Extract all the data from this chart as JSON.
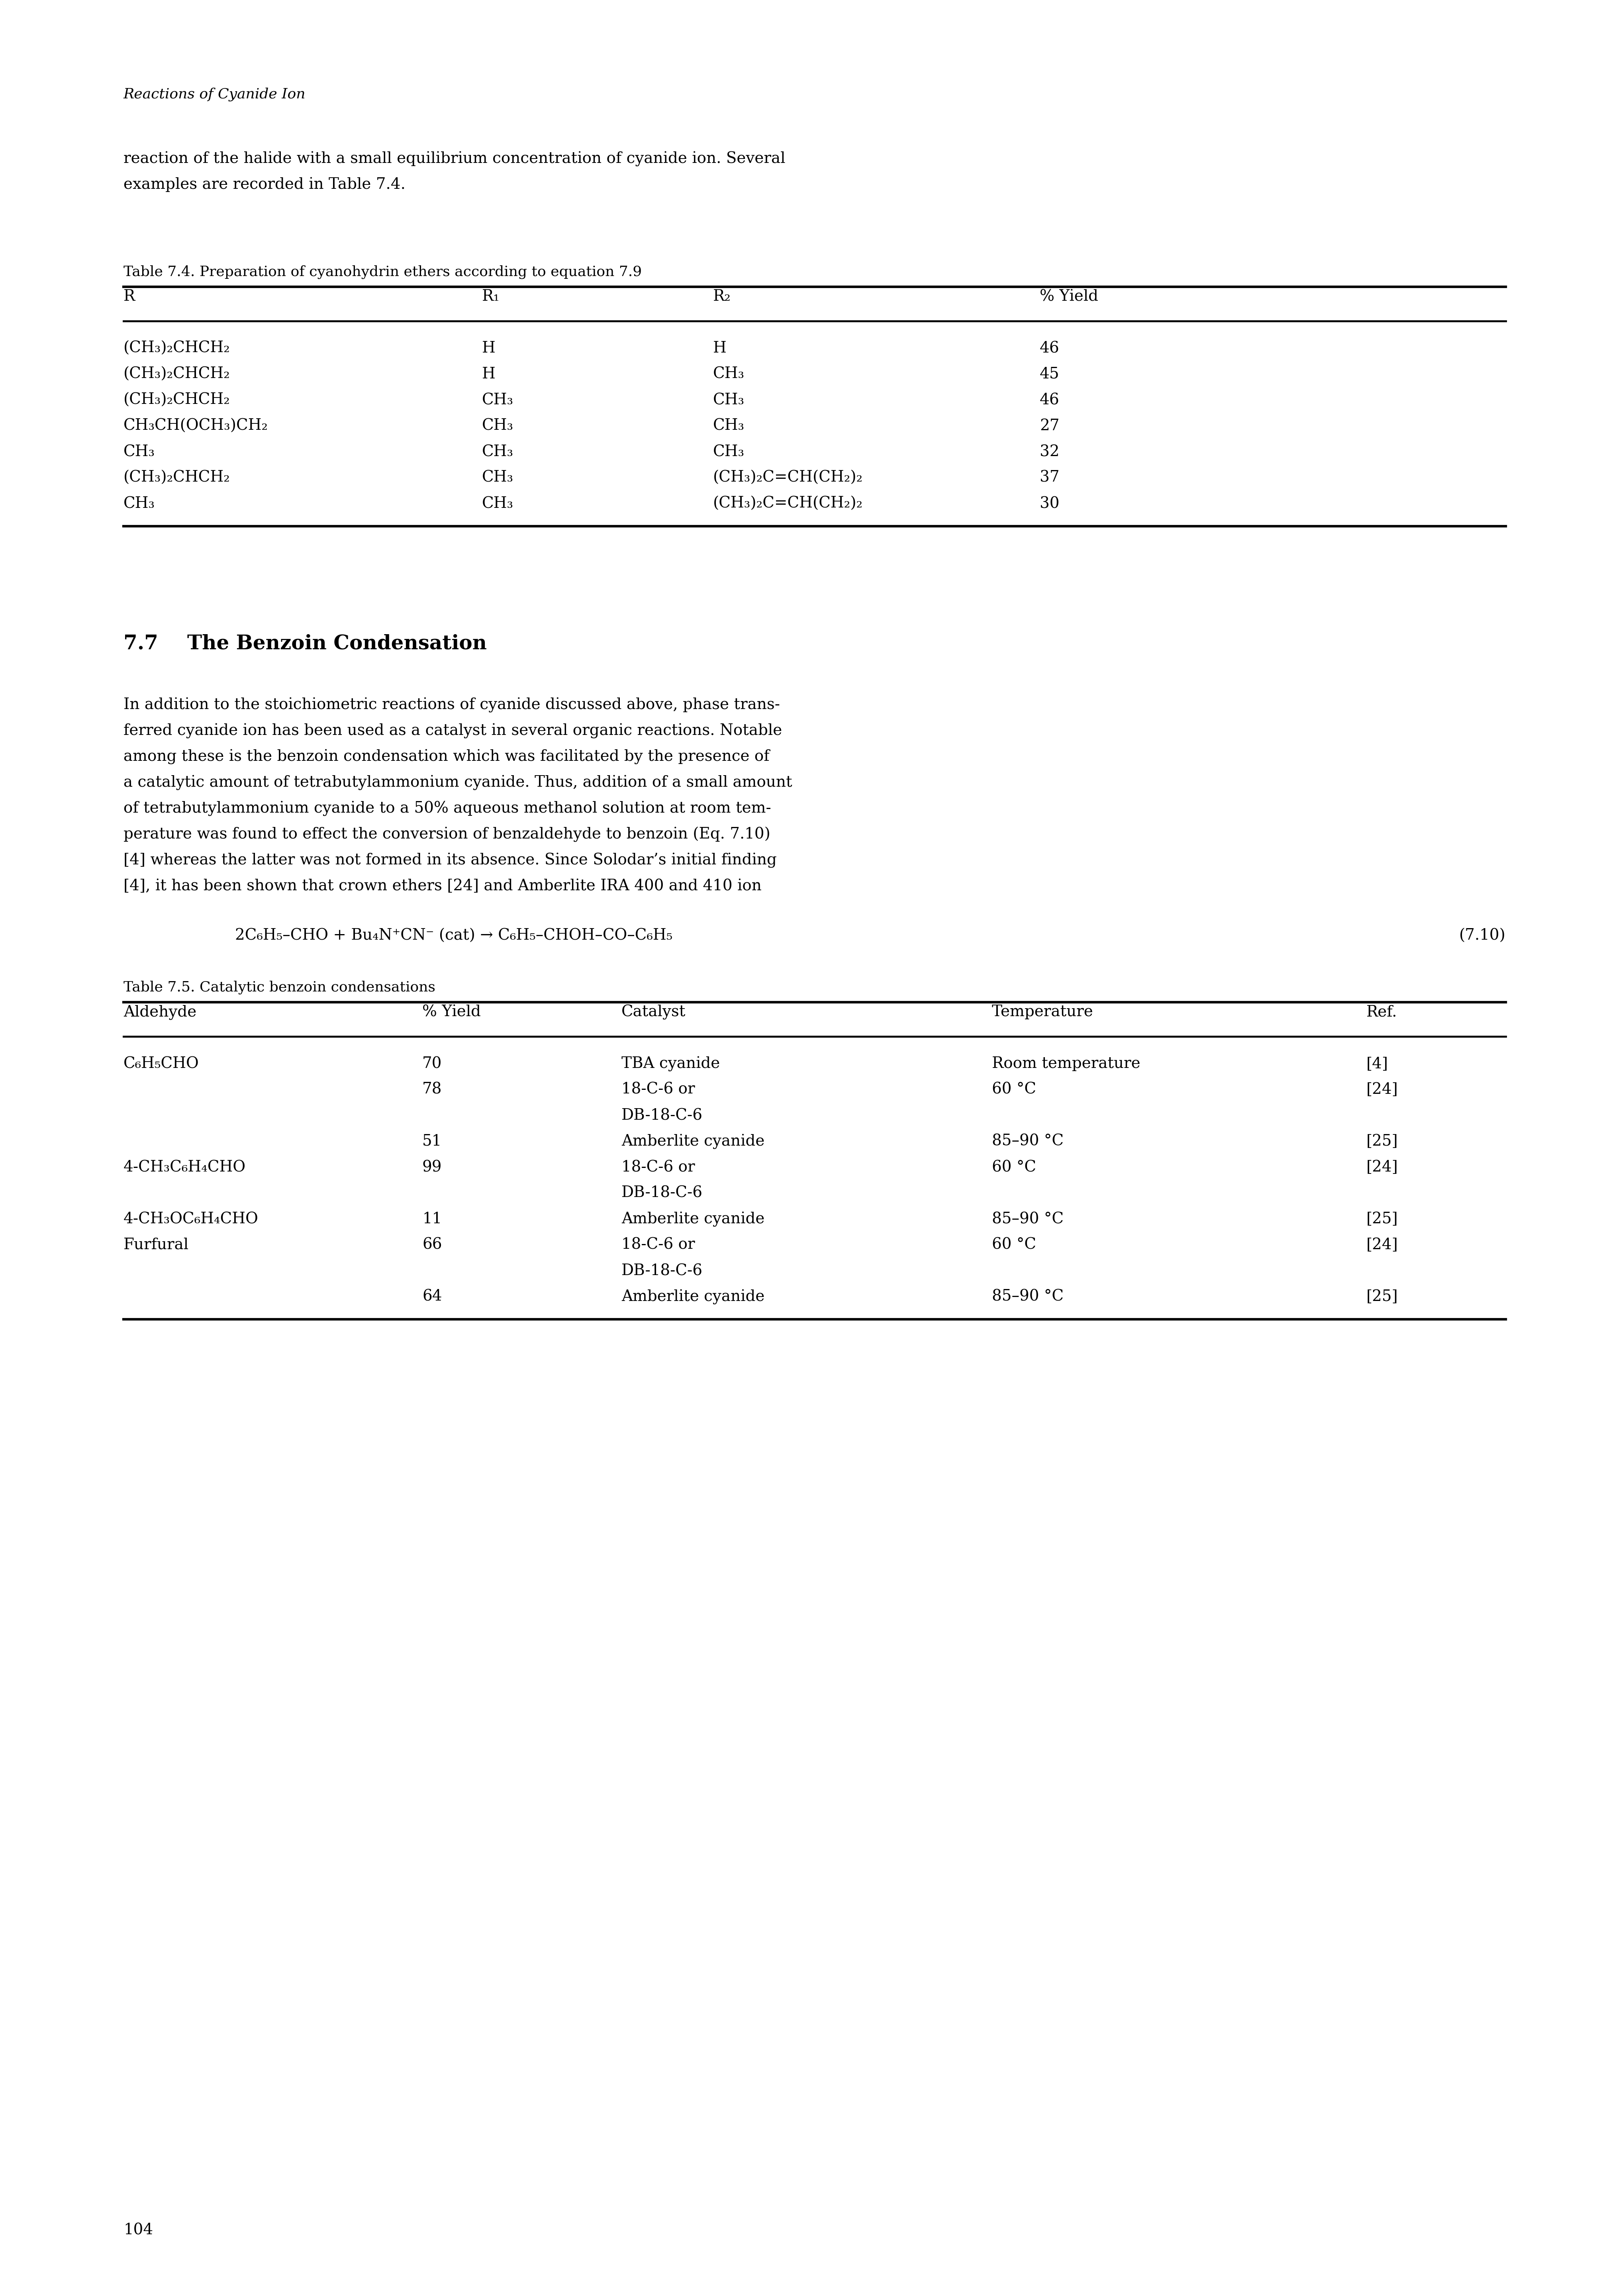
{
  "page_width": 40.19,
  "page_height": 57.64,
  "bg_color": "#ffffff",
  "header_text": "Reactions of Cyanide Ion",
  "intro_line1": "reaction of the halide with a small equilibrium concentration of cyanide ion. Several",
  "intro_line2": "examples are recorded in Table 7.4.",
  "table74_caption": "Table 7.4. Preparation of cyanohydrin ethers according to equation 7.9",
  "table74_rows": [
    [
      "(CH₃)₂CHCH₂",
      "H",
      "H",
      "46"
    ],
    [
      "(CH₃)₂CHCH₂",
      "H",
      "CH₃",
      "45"
    ],
    [
      "(CH₃)₂CHCH₂",
      "CH₃",
      "CH₃",
      "46"
    ],
    [
      "CH₃CH(OCH₃)CH₂",
      "CH₃",
      "CH₃",
      "27"
    ],
    [
      "CH₃",
      "CH₃",
      "CH₃",
      "32"
    ],
    [
      "(CH₃)₂CHCH₂",
      "CH₃",
      "(CH₃)₂C=CH(CH₂)₂",
      "37"
    ],
    [
      "CH₃",
      "CH₃",
      "(CH₃)₂C=CH(CH₂)₂",
      "30"
    ]
  ],
  "section_header_num": "7.7",
  "section_header_text": "The Benzoin Condensation",
  "body_lines": [
    "In addition to the stoichiometric reactions of cyanide discussed above, phase trans-",
    "ferred cyanide ion has been used as a catalyst in several organic reactions. Notable",
    "among these is the benzoin condensation which was facilitated by the presence of",
    "a catalytic amount of tetrabutylammonium cyanide. Thus, addition of a small amount",
    "of tetrabutylammonium cyanide to a 50% aqueous methanol solution at room tem-",
    "perature was found to effect the conversion of benzaldehyde to benzoin (Eq. 7.10)",
    "[4] whereas the latter was not formed in its absence. Since Solodar’s initial finding",
    "[4], it has been shown that crown ethers [24] and Amberlite IRA 400 and 410 ion"
  ],
  "equation_text": "2C₆H₅–CHO + Bu₄N⁺CN⁻ (cat) → C₆H₅–CHOH–CO–C₆H₅",
  "equation_number": "(7.10)",
  "table75_caption": "Table 7.5. Catalytic benzoin condensations",
  "table75_rows": [
    [
      "C₆H₅CHO",
      "70",
      "TBA cyanide",
      "Room temperature",
      "[4]"
    ],
    [
      "",
      "78",
      "18-C-6 or",
      "60 °C",
      "[24]"
    ],
    [
      "",
      "",
      "DB-18-C-6",
      "",
      ""
    ],
    [
      "",
      "51",
      "Amberlite cyanide",
      "85–90 °C",
      "[25]"
    ],
    [
      "4-CH₃C₆H₄CHO",
      "99",
      "18-C-6 or",
      "60 °C",
      "[24]"
    ],
    [
      "",
      "",
      "DB-18-C-6",
      "",
      ""
    ],
    [
      "4-CH₃OC₆H₄CHO",
      "11",
      "Amberlite cyanide",
      "85–90 °C",
      "[25]"
    ],
    [
      "Furfural",
      "66",
      "18-C-6 or",
      "60 °C",
      "[24]"
    ],
    [
      "",
      "",
      "DB-18-C-6",
      "",
      ""
    ],
    [
      "",
      "64",
      "Amberlite cyanide",
      "85–90 °C",
      "[25]"
    ]
  ],
  "page_number": "104",
  "font_body": 28,
  "font_caption": 26,
  "font_table": 28,
  "font_header": 26,
  "font_section": 36
}
